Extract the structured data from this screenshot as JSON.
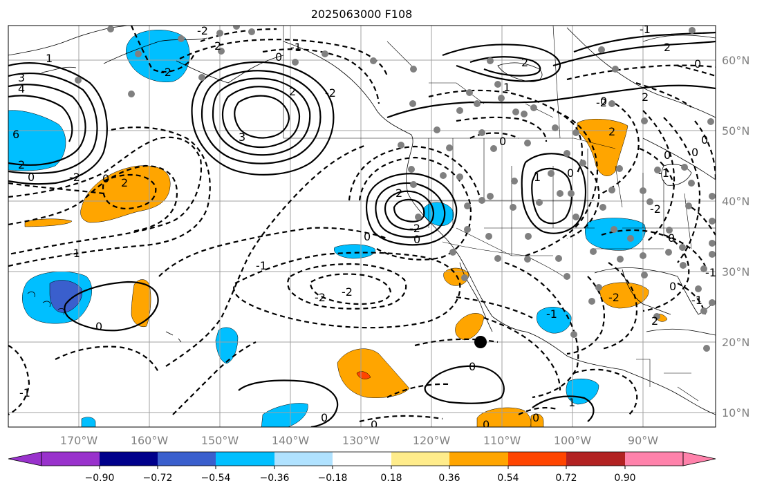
{
  "title": "2025063000 F108",
  "lon_labels": [
    "170°W",
    "160°W",
    "150°W",
    "140°W",
    "130°W",
    "120°W",
    "110°W",
    "100°W",
    "90°W"
  ],
  "lat_labels": [
    "60°N",
    "50°N",
    "40°N",
    "30°N",
    "20°N",
    "10°N"
  ],
  "colorbar": {
    "ticks": [
      "−0.90",
      "−0.72",
      "−0.54",
      "−0.36",
      "−0.18",
      "0.18",
      "0.36",
      "0.54",
      "0.72",
      "0.90"
    ],
    "colors": [
      "#9932CC",
      "#00008B",
      "#3A5FCD",
      "#00BFFF",
      "#B0E2FF",
      "#FFFFFF",
      "#FFEC8B",
      "#FFA500",
      "#FF4500",
      "#B22222",
      "#FF82AB"
    ]
  },
  "contour_labels": [
    "1",
    "3",
    "4",
    "6",
    "2",
    "0",
    "-2",
    "0",
    "-1",
    "2",
    "-2",
    "2",
    "3",
    "2",
    "-2",
    "-1",
    "0",
    "-2",
    "2",
    "1",
    "2",
    "0",
    "-1",
    "2",
    "-2",
    "0",
    "0",
    "2",
    "-2",
    "0",
    "-1",
    "0",
    "-2",
    "-2",
    "0",
    "1",
    "0",
    "0",
    "-2",
    "0",
    "0",
    "0",
    "-1",
    "0",
    "0",
    "1",
    "-1",
    "0",
    "-1",
    "0",
    "-1",
    "2",
    "-1",
    "2",
    "0",
    "0",
    "-2"
  ]
}
